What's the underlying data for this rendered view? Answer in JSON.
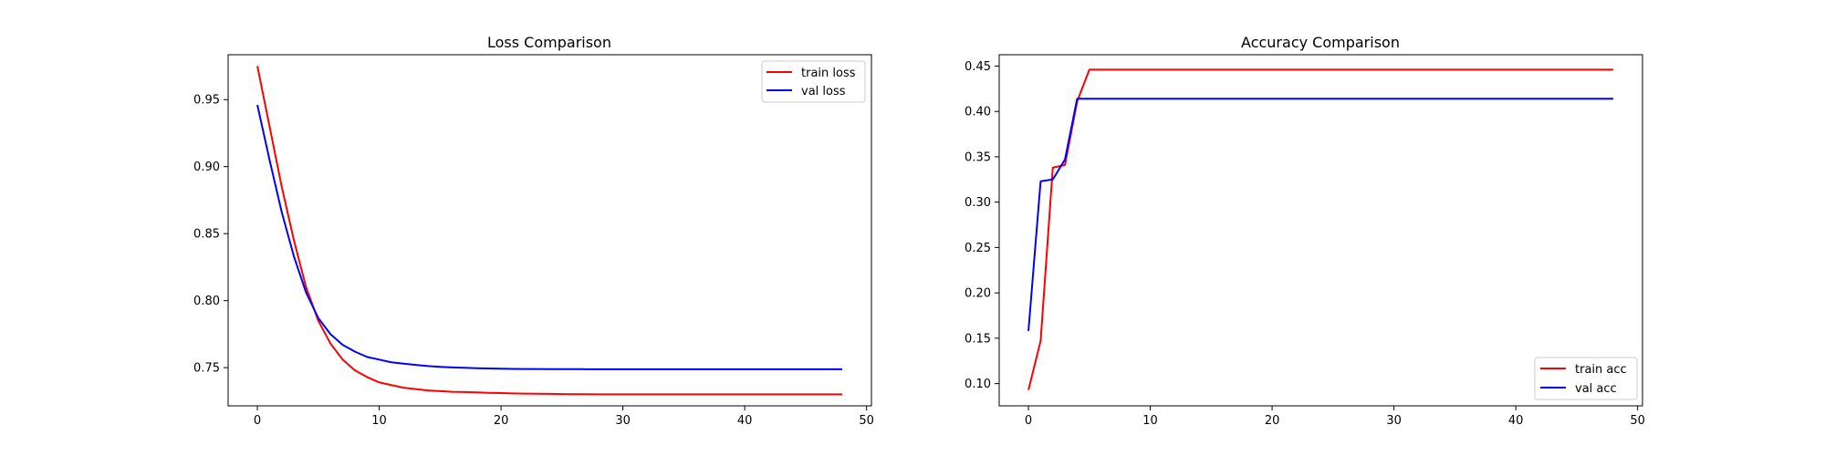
{
  "chart_data": [
    {
      "type": "line",
      "title": "Loss Comparison",
      "xlabel": "",
      "ylabel": "",
      "xlim": [
        -2.4,
        50.4
      ],
      "ylim": [
        0.7215,
        0.9835
      ],
      "x_ticks": [
        0,
        10,
        20,
        30,
        40,
        50
      ],
      "x_tick_labels": [
        "0",
        "10",
        "20",
        "30",
        "40",
        "50"
      ],
      "y_ticks": [
        0.75,
        0.8,
        0.85,
        0.9,
        0.95
      ],
      "y_tick_labels": [
        "0.75",
        "0.80",
        "0.85",
        "0.90",
        "0.95"
      ],
      "grid": false,
      "legend_loc": "upper right",
      "x": [
        0,
        1,
        2,
        3,
        4,
        5,
        6,
        7,
        8,
        9,
        10,
        11,
        12,
        13,
        14,
        15,
        16,
        17,
        18,
        19,
        20,
        21,
        22,
        23,
        24,
        25,
        26,
        27,
        28,
        29,
        30,
        31,
        32,
        33,
        34,
        35,
        36,
        37,
        38,
        39,
        40,
        41,
        42,
        43,
        44,
        45,
        46,
        47,
        48
      ],
      "series": [
        {
          "name": "train loss",
          "color": "#ff0000",
          "values": [
            0.975,
            0.93,
            0.885,
            0.845,
            0.81,
            0.785,
            0.768,
            0.756,
            0.748,
            0.743,
            0.739,
            0.737,
            0.735,
            0.734,
            0.733,
            0.7325,
            0.732,
            0.7318,
            0.7315,
            0.7312,
            0.731,
            0.7308,
            0.7306,
            0.7305,
            0.7304,
            0.7303,
            0.7302,
            0.7302,
            0.7301,
            0.7301,
            0.7301,
            0.7301,
            0.7301,
            0.7301,
            0.7301,
            0.7301,
            0.7301,
            0.7301,
            0.7301,
            0.7301,
            0.7301,
            0.7301,
            0.7301,
            0.7301,
            0.7301,
            0.7301,
            0.7301,
            0.7301,
            0.7301
          ]
        },
        {
          "name": "val loss",
          "color": "#0000ff",
          "values": [
            0.946,
            0.905,
            0.866,
            0.833,
            0.806,
            0.787,
            0.775,
            0.767,
            0.762,
            0.758,
            0.756,
            0.754,
            0.753,
            0.752,
            0.7512,
            0.7506,
            0.7502,
            0.7499,
            0.7496,
            0.7494,
            0.7492,
            0.7491,
            0.749,
            0.749,
            0.7489,
            0.7489,
            0.7489,
            0.7488,
            0.7488,
            0.7488,
            0.7488,
            0.7488,
            0.7488,
            0.7488,
            0.7488,
            0.7488,
            0.7488,
            0.7488,
            0.7488,
            0.7488,
            0.7488,
            0.7488,
            0.7488,
            0.7488,
            0.7488,
            0.7488,
            0.7488,
            0.7488,
            0.7488
          ]
        }
      ]
    },
    {
      "type": "line",
      "title": "Accuracy Comparison",
      "xlabel": "",
      "ylabel": "",
      "xlim": [
        -2.4,
        50.4
      ],
      "ylim": [
        0.0755,
        0.4625
      ],
      "x_ticks": [
        0,
        10,
        20,
        30,
        40,
        50
      ],
      "x_tick_labels": [
        "0",
        "10",
        "20",
        "30",
        "40",
        "50"
      ],
      "y_ticks": [
        0.1,
        0.15,
        0.2,
        0.25,
        0.3,
        0.35,
        0.4,
        0.45
      ],
      "y_tick_labels": [
        "0.10",
        "0.15",
        "0.20",
        "0.25",
        "0.30",
        "0.35",
        "0.40",
        "0.45"
      ],
      "grid": false,
      "legend_loc": "lower right",
      "x": [
        0,
        1,
        2,
        3,
        4,
        5,
        6,
        7,
        8,
        9,
        10,
        11,
        12,
        13,
        14,
        15,
        16,
        17,
        18,
        19,
        20,
        21,
        22,
        23,
        24,
        25,
        26,
        27,
        28,
        29,
        30,
        31,
        32,
        33,
        34,
        35,
        36,
        37,
        38,
        39,
        40,
        41,
        42,
        43,
        44,
        45,
        46,
        47,
        48
      ],
      "series": [
        {
          "name": "train acc",
          "color": "#ff0000",
          "values": [
            0.093,
            0.147,
            0.338,
            0.341,
            0.411,
            0.446,
            0.446,
            0.446,
            0.446,
            0.446,
            0.446,
            0.446,
            0.446,
            0.446,
            0.446,
            0.446,
            0.446,
            0.446,
            0.446,
            0.446,
            0.446,
            0.446,
            0.446,
            0.446,
            0.446,
            0.446,
            0.446,
            0.446,
            0.446,
            0.446,
            0.446,
            0.446,
            0.446,
            0.446,
            0.446,
            0.446,
            0.446,
            0.446,
            0.446,
            0.446,
            0.446,
            0.446,
            0.446,
            0.446,
            0.446,
            0.446,
            0.446,
            0.446,
            0.446
          ]
        },
        {
          "name": "val acc",
          "color": "#0000ff",
          "values": [
            0.158,
            0.323,
            0.325,
            0.347,
            0.414,
            0.414,
            0.414,
            0.414,
            0.414,
            0.414,
            0.414,
            0.414,
            0.414,
            0.414,
            0.414,
            0.414,
            0.414,
            0.414,
            0.414,
            0.414,
            0.414,
            0.414,
            0.414,
            0.414,
            0.414,
            0.414,
            0.414,
            0.414,
            0.414,
            0.414,
            0.414,
            0.414,
            0.414,
            0.414,
            0.414,
            0.414,
            0.414,
            0.414,
            0.414,
            0.414,
            0.414,
            0.414,
            0.414,
            0.414,
            0.414,
            0.414,
            0.414,
            0.414,
            0.414
          ]
        }
      ]
    }
  ]
}
